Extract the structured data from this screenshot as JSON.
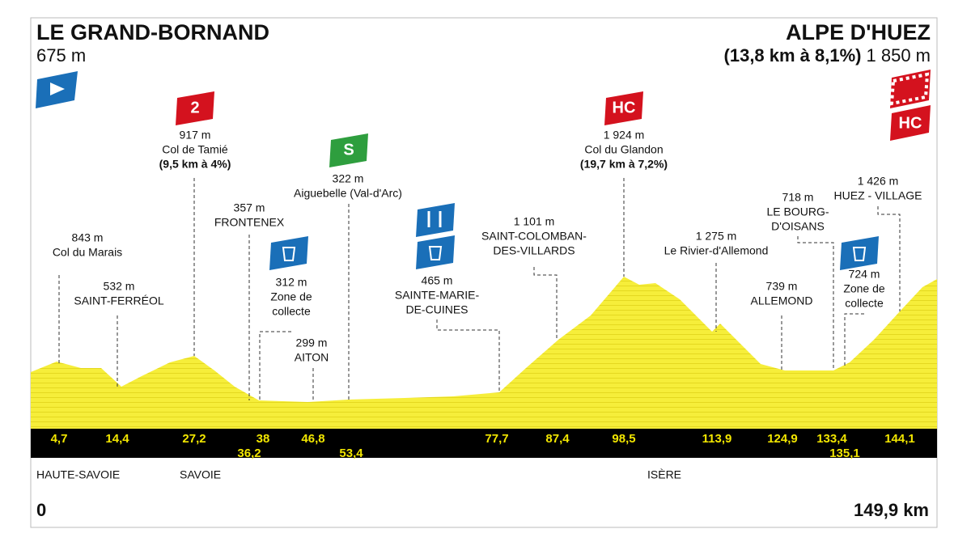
{
  "start": {
    "name": "LE GRAND-BORNAND",
    "altitude": "675 m"
  },
  "finish": {
    "name": "ALPE D'HUEZ",
    "climb": "(13,8 km à 8,1%)",
    "altitude": "1 850 m",
    "badge": "HC"
  },
  "waypoints": [
    {
      "km": "4,7",
      "name": [
        "843 m",
        "Col du Marais"
      ]
    },
    {
      "km": "14,4",
      "name": [
        "532 m",
        "SAINT-FERRÉOL"
      ]
    },
    {
      "km": "27,2",
      "name": [
        "917 m",
        "Col de Tamié"
      ],
      "climb": "(9,5 km à 4%)",
      "badge": "2"
    },
    {
      "km": "36,2",
      "name": [
        "357 m",
        "FRONTENEX"
      ]
    },
    {
      "km": "38",
      "name": [
        "312 m",
        "Zone de",
        "collecte"
      ]
    },
    {
      "km": "46,8",
      "name": [
        "299 m",
        "AITON"
      ]
    },
    {
      "km": "53,4",
      "name": [
        "322 m",
        "Aiguebelle (Val-d'Arc)"
      ],
      "badge": "S"
    },
    {
      "km": "77,7",
      "name": [
        "465 m",
        "SAINTE-MARIE-",
        "DE-CUINES"
      ]
    },
    {
      "km": "87,4",
      "name": [
        "1 101 m",
        "SAINT-COLOMBAN-",
        "DES-VILLARDS"
      ]
    },
    {
      "km": "98,5",
      "name": [
        "1 924 m",
        "Col du Glandon"
      ],
      "climb": "(19,7 km à 7,2%)",
      "badge": "HC"
    },
    {
      "km": "113,9",
      "name": [
        "1 275 m",
        "Le Rivier-d'Allemond"
      ]
    },
    {
      "km": "124,9",
      "name": [
        "739 m",
        "ALLEMOND"
      ]
    },
    {
      "km": "133,4",
      "name": [
        "718 m",
        "LE BOURG-",
        "D'OISANS"
      ]
    },
    {
      "km": "135,1",
      "name": [
        "724 m",
        "Zone de",
        "collecte"
      ]
    },
    {
      "km": "144,1",
      "name": [
        "1 426 m",
        "HUEZ - VILLAGE"
      ]
    }
  ],
  "regions": [
    "HAUTE-SAVOIE",
    "SAVOIE",
    "ISÈRE"
  ],
  "distance": {
    "start": "0",
    "end": "149,9 km"
  }
}
